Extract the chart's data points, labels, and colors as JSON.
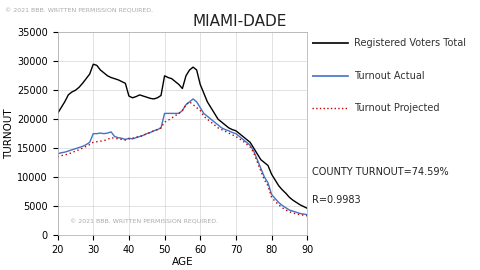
{
  "title": "MIAMI-DADE",
  "xlabel": "AGE",
  "ylabel": "TURNOUT",
  "xlim": [
    20,
    90
  ],
  "ylim": [
    0,
    35000
  ],
  "yticks": [
    0,
    5000,
    10000,
    15000,
    20000,
    25000,
    30000,
    35000
  ],
  "xticks": [
    20,
    30,
    40,
    50,
    60,
    70,
    80,
    90
  ],
  "annotation1": "COUNTY TURNOUT=74.59%",
  "annotation2": "R=0.9983",
  "copyright1": "© 2021 BBB. WRITTEN PERMISSION REQUIRED.",
  "copyright2": "© 2021 BBB. WRITTEN PERMISSION REQUIRED.",
  "age": [
    20,
    21,
    22,
    23,
    24,
    25,
    26,
    27,
    28,
    29,
    30,
    31,
    32,
    33,
    34,
    35,
    36,
    37,
    38,
    39,
    40,
    41,
    42,
    43,
    44,
    45,
    46,
    47,
    48,
    49,
    50,
    51,
    52,
    53,
    54,
    55,
    56,
    57,
    58,
    59,
    60,
    61,
    62,
    63,
    64,
    65,
    66,
    67,
    68,
    69,
    70,
    71,
    72,
    73,
    74,
    75,
    76,
    77,
    78,
    79,
    80,
    81,
    82,
    83,
    84,
    85,
    86,
    87,
    88,
    89,
    90
  ],
  "registered": [
    21000,
    22000,
    23000,
    24200,
    24700,
    25000,
    25500,
    26200,
    27000,
    27800,
    29500,
    29300,
    28500,
    28000,
    27500,
    27200,
    27000,
    26800,
    26500,
    26200,
    24000,
    23700,
    23900,
    24200,
    24000,
    23800,
    23600,
    23500,
    23700,
    24100,
    27500,
    27200,
    27000,
    26500,
    26000,
    25300,
    27500,
    28500,
    29000,
    28500,
    26000,
    24500,
    23000,
    22000,
    21000,
    20000,
    19500,
    19000,
    18500,
    18200,
    18000,
    17500,
    17000,
    16500,
    16000,
    15000,
    14000,
    13000,
    12500,
    12000,
    10500,
    9500,
    8500,
    7800,
    7200,
    6500,
    6000,
    5600,
    5200,
    4900,
    4600
  ],
  "actual": [
    14000,
    14200,
    14300,
    14500,
    14700,
    14900,
    15100,
    15300,
    15600,
    16000,
    17500,
    17500,
    17600,
    17500,
    17600,
    17800,
    17000,
    16800,
    16700,
    16500,
    16700,
    16600,
    16800,
    17000,
    17200,
    17500,
    17700,
    18000,
    18200,
    18500,
    21000,
    21000,
    21000,
    21000,
    21000,
    21500,
    22500,
    23000,
    23500,
    23000,
    22000,
    21000,
    20500,
    20000,
    19500,
    19000,
    18500,
    18200,
    18000,
    17700,
    17500,
    17000,
    16500,
    16000,
    15500,
    14500,
    13000,
    11500,
    10000,
    9000,
    7000,
    6300,
    5600,
    5100,
    4700,
    4300,
    4100,
    3900,
    3700,
    3600,
    3500
  ],
  "projected": [
    13500,
    13700,
    13800,
    14000,
    14200,
    14500,
    14700,
    15000,
    15300,
    15600,
    16000,
    16100,
    16200,
    16300,
    16500,
    16800,
    16700,
    16600,
    16500,
    16400,
    16600,
    16700,
    16900,
    17000,
    17200,
    17500,
    17700,
    18000,
    18200,
    18500,
    19500,
    19800,
    20200,
    20600,
    21000,
    21500,
    22500,
    23000,
    22500,
    22000,
    21500,
    20500,
    20000,
    19500,
    19000,
    18500,
    18200,
    17900,
    17600,
    17300,
    17000,
    16600,
    16200,
    15700,
    15200,
    14200,
    12600,
    11000,
    9500,
    8500,
    6500,
    5800,
    5200,
    4700,
    4300,
    4000,
    3800,
    3600,
    3500,
    3400,
    3300
  ],
  "line_registered_color": "#000000",
  "line_actual_color": "#4472c4",
  "line_projected_color": "#c00000",
  "background": "#ffffff",
  "grid_color": "#cccccc",
  "title_fontsize": 11,
  "label_fontsize": 7.5,
  "tick_fontsize": 7,
  "legend_fontsize": 7,
  "annot_fontsize": 7,
  "copyright_fontsize": 4.5
}
